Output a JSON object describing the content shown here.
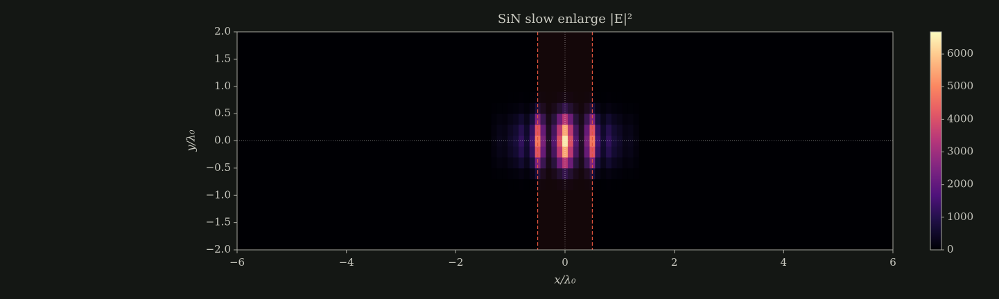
{
  "chart_data": {
    "type": "heatmap",
    "title": "SiN slow enlarge |E|²",
    "xlabel": "x/λ₀",
    "ylabel": "y/λ₀",
    "xlim": [
      -6,
      6
    ],
    "xticks": [
      {
        "value": -6,
        "label": "−6"
      },
      {
        "value": -4,
        "label": "−4"
      },
      {
        "value": -2,
        "label": "−2"
      },
      0,
      2,
      4,
      6
    ],
    "ylim": [
      -2,
      2
    ],
    "yticks": [
      {
        "value": -2,
        "label": "−2.0"
      },
      {
        "value": -1.5,
        "label": "−1.5"
      },
      {
        "value": -1,
        "label": "−1.0"
      },
      {
        "value": -0.5,
        "label": "−0.5"
      },
      {
        "value": 0,
        "label": "0.0"
      },
      0.5,
      {
        "value": 1,
        "label": "1.0"
      },
      1.5,
      {
        "value": 2,
        "label": "2.0"
      }
    ],
    "colormap": "magma",
    "zlim": [
      0,
      6680
    ],
    "zticks": [
      0,
      1000,
      2000,
      3000,
      4000,
      5000,
      6000
    ],
    "shaded_region": {
      "x": [
        -0.5,
        0.5
      ],
      "color": "#e0533f"
    },
    "x": [
      -1.3,
      -1.2,
      -1.1,
      -1.0,
      -0.9,
      -0.8,
      -0.7,
      -0.6,
      -0.5,
      -0.4,
      -0.3,
      -0.2,
      -0.1,
      0,
      0.1,
      0.2,
      0.3,
      0.4,
      0.5,
      0.6,
      0.7,
      0.8,
      0.9,
      1.0,
      1.1,
      1.2,
      1.3
    ],
    "y": [
      -0.8,
      -0.6,
      -0.4,
      -0.2,
      0,
      0.2,
      0.4,
      0.6,
      0.8
    ],
    "z": [
      [
        3,
        6,
        5,
        10,
        14,
        24,
        12,
        30,
        96,
        44,
        8,
        30,
        80,
        132,
        80,
        30,
        8,
        44,
        96,
        30,
        12,
        24,
        14,
        10,
        5,
        6,
        3
      ],
      [
        23,
        45,
        38,
        75,
        105,
        180,
        90,
        225,
        720,
        330,
        60,
        225,
        600,
        990,
        600,
        225,
        60,
        330,
        720,
        225,
        90,
        180,
        105,
        75,
        38,
        45,
        23
      ],
      [
        75,
        150,
        125,
        250,
        350,
        600,
        300,
        750,
        2400,
        1100,
        200,
        750,
        2000,
        3300,
        2000,
        750,
        200,
        1100,
        2400,
        750,
        300,
        600,
        350,
        250,
        125,
        150,
        75
      ],
      [
        128,
        255,
        213,
        425,
        595,
        1020,
        510,
        1275,
        4080,
        1870,
        340,
        1275,
        3400,
        5610,
        3400,
        1275,
        340,
        1870,
        4080,
        1275,
        510,
        1020,
        595,
        425,
        213,
        255,
        128
      ],
      [
        150,
        300,
        250,
        500,
        700,
        1200,
        600,
        1500,
        4800,
        2200,
        400,
        1500,
        4000,
        6600,
        4000,
        1500,
        400,
        2200,
        4800,
        1500,
        600,
        1200,
        700,
        500,
        250,
        300,
        150
      ],
      [
        128,
        255,
        213,
        425,
        595,
        1020,
        510,
        1275,
        4080,
        1870,
        340,
        1275,
        3400,
        5610,
        3400,
        1275,
        340,
        1870,
        4080,
        1275,
        510,
        1020,
        595,
        425,
        213,
        255,
        128
      ],
      [
        75,
        150,
        125,
        250,
        350,
        600,
        300,
        750,
        2400,
        1100,
        200,
        750,
        2000,
        3300,
        2000,
        750,
        200,
        1100,
        2400,
        750,
        300,
        600,
        350,
        250,
        125,
        150,
        75
      ],
      [
        23,
        45,
        38,
        75,
        105,
        180,
        90,
        225,
        720,
        330,
        60,
        225,
        600,
        990,
        600,
        225,
        60,
        330,
        720,
        225,
        90,
        180,
        105,
        75,
        38,
        45,
        23
      ],
      [
        3,
        6,
        5,
        10,
        14,
        24,
        12,
        30,
        96,
        44,
        8,
        30,
        80,
        132,
        80,
        30,
        8,
        44,
        96,
        30,
        12,
        24,
        14,
        10,
        5,
        6,
        3
      ]
    ]
  }
}
